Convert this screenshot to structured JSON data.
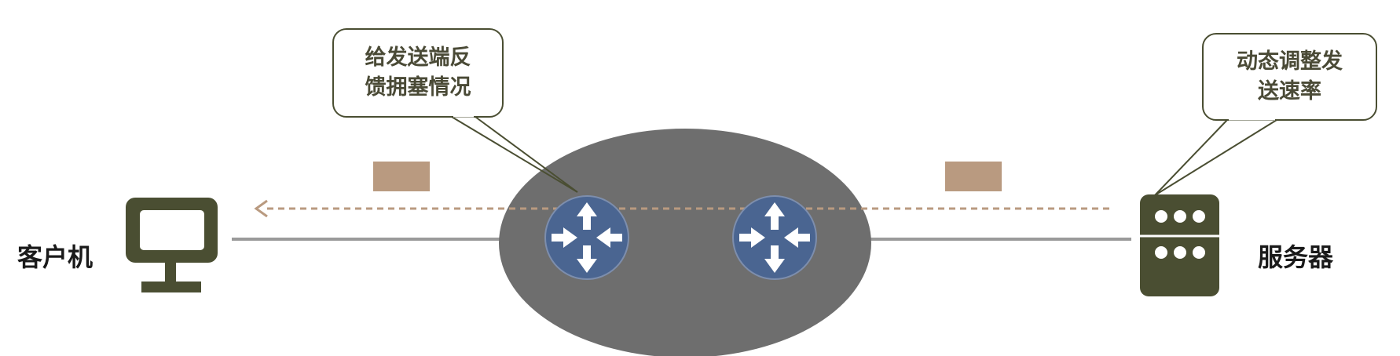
{
  "client": {
    "label": "客户机",
    "icon": "monitor-icon"
  },
  "server": {
    "label": "服务器",
    "icon": "server-icon"
  },
  "network": {
    "router_icon": "router-icon",
    "router_count": 2
  },
  "callouts": {
    "feedback": {
      "line1": "给发送端反",
      "line2": "馈拥塞情况"
    },
    "adjust": {
      "line1": "动态调整发",
      "line2": "送速率"
    }
  },
  "signals": {
    "packet_count": 2,
    "direction": "server-to-client"
  },
  "colors": {
    "network_cloud": "#6e6e6e",
    "router": "#4a6591",
    "device": "#4a4e32",
    "packet": "#b99a80",
    "dashed_arrow": "#b99a80",
    "link": "#999999",
    "callout_border": "#4a4e32"
  }
}
